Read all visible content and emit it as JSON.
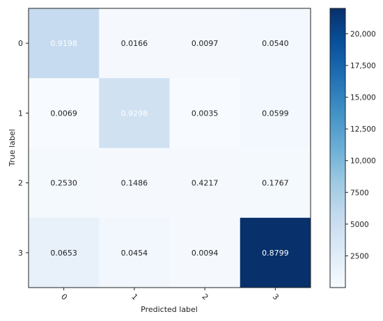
{
  "chart_data": {
    "type": "heatmap",
    "title": "",
    "xlabel": "Predicted label",
    "ylabel": "True label",
    "x_categories": [
      "0",
      "1",
      "2",
      "3"
    ],
    "y_categories": [
      "0",
      "1",
      "2",
      "3"
    ],
    "values": [
      [
        0.9198,
        0.0166,
        0.0097,
        0.054
      ],
      [
        0.0069,
        0.9298,
        0.0035,
        0.0599
      ],
      [
        0.253,
        0.1486,
        0.4217,
        0.1767
      ],
      [
        0.0653,
        0.0454,
        0.0094,
        0.8799
      ]
    ],
    "cell_labels": [
      [
        "0.9198",
        "0.0166",
        "0.0097",
        "0.0540"
      ],
      [
        "0.0069",
        "0.9298",
        "0.0035",
        "0.0599"
      ],
      [
        "0.2530",
        "0.1486",
        "0.4217",
        "0.1767"
      ],
      [
        "0.0653",
        "0.0454",
        "0.0094",
        "0.8799"
      ]
    ],
    "colormap": "Blues",
    "colorbar": {
      "range": [
        0,
        22000
      ],
      "ticks": [
        2500,
        5000,
        7500,
        10000,
        12500,
        15000,
        17500,
        20000
      ],
      "tick_labels": [
        "2500",
        "5000",
        "7500",
        "10,000",
        "12,500",
        "15,000",
        "17,500",
        "20,000"
      ]
    },
    "cell_colors": [
      [
        "#c6dbef",
        "#f5f9fe",
        "#f5f9fe",
        "#f3f8fe"
      ],
      [
        "#f7fbff",
        "#d0e1f2",
        "#f7fbff",
        "#f3f8fe"
      ],
      [
        "#f4f9fe",
        "#f5f9fe",
        "#f5f9fe",
        "#f4f9fe"
      ],
      [
        "#e8f1fa",
        "#f1f7fd",
        "#f5f9fe",
        "#08306b"
      ]
    ],
    "label_colors": [
      [
        "#ffffff",
        "#222222",
        "#222222",
        "#222222"
      ],
      [
        "#222222",
        "#ffffff",
        "#222222",
        "#222222"
      ],
      [
        "#222222",
        "#222222",
        "#222222",
        "#222222"
      ],
      [
        "#222222",
        "#222222",
        "#222222",
        "#ffffff"
      ]
    ]
  }
}
